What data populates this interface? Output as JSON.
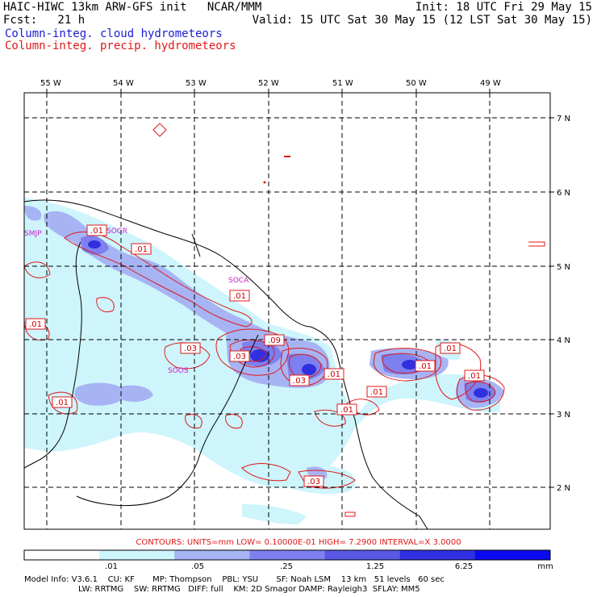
{
  "header": {
    "title": "HAIC-HIWC 13km ARW-GFS init   NCAR/MMM",
    "init": "Init: 18 UTC Fri 29 May 15",
    "fcst": "Fcst:   21 h",
    "valid": "Valid: 15 UTC Sat 30 May 15 (12 LST Sat 30 May 15)",
    "legend_cloud": "Column-integ. cloud hydrometeors",
    "legend_precip": "Column-integ. precip. hydrometeors"
  },
  "map": {
    "lon_labels": [
      "55 W",
      "54 W",
      "53 W",
      "52 W",
      "51 W",
      "50 W",
      "49 W"
    ],
    "lat_labels": [
      "7 N",
      "6 N",
      "5 N",
      "4 N",
      "3 N",
      "2 N"
    ],
    "stations": [
      "SMJP",
      "SOGR",
      "SOCA",
      "SOOS"
    ],
    "contour_labels": [
      ".01",
      ".01",
      ".01",
      ".01",
      ".03",
      ".03",
      ".09",
      ".03",
      ".01",
      ".01",
      ".01",
      ".01",
      ".01",
      ".03",
      ".01",
      ".01"
    ]
  },
  "colorbar": {
    "colors": [
      "#ffffff",
      "#cdf5fb",
      "#a7b4f4",
      "#7d80ee",
      "#5858e4",
      "#3030e0",
      "#0a0af2"
    ],
    "ticks": [
      ".01",
      ".05",
      ".25",
      "1.25",
      "6.25"
    ],
    "units": "mm"
  },
  "contour_info": "CONTOURS:  UNITS=mm  LOW= 0.10000E-01  HIGH=  7.2900     INTERVAL=X  3.0000",
  "model_info": {
    "line1": "Model Info: V3.6.1    CU: KF       MP: Thompson    PBL: YSU       SF: Noah LSM    13 km   51 levels   60 sec",
    "line2": "LW: RRTMG    SW: RRTMG   DIFF: full    KM: 2D Smagor DAMP: Rayleigh3  SFLAY: MM5"
  }
}
